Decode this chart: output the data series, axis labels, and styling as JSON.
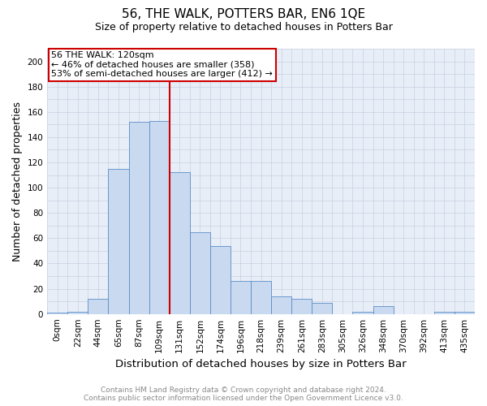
{
  "title": "56, THE WALK, POTTERS BAR, EN6 1QE",
  "subtitle": "Size of property relative to detached houses in Potters Bar",
  "xlabel": "Distribution of detached houses by size in Potters Bar",
  "ylabel": "Number of detached properties",
  "categories": [
    "0sqm",
    "22sqm",
    "44sqm",
    "65sqm",
    "87sqm",
    "109sqm",
    "131sqm",
    "152sqm",
    "174sqm",
    "196sqm",
    "218sqm",
    "239sqm",
    "261sqm",
    "283sqm",
    "305sqm",
    "326sqm",
    "348sqm",
    "370sqm",
    "392sqm",
    "413sqm",
    "435sqm"
  ],
  "bar_heights": [
    1,
    2,
    12,
    115,
    152,
    153,
    112,
    65,
    54,
    26,
    26,
    14,
    12,
    9,
    0,
    2,
    6,
    0,
    0,
    2,
    2
  ],
  "bar_color": "#c9d9ef",
  "bar_edge_color": "#5b8dc8",
  "annotation_text1": "56 THE WALK: 120sqm",
  "annotation_text2": "← 46% of detached houses are smaller (358)",
  "annotation_text3": "53% of semi-detached houses are larger (412) →",
  "annotation_box_color": "#ffffff",
  "annotation_border_color": "#cc0000",
  "line_color": "#cc0000",
  "ylim": [
    0,
    210
  ],
  "yticks": [
    0,
    20,
    40,
    60,
    80,
    100,
    120,
    140,
    160,
    180,
    200
  ],
  "footer_line1": "Contains HM Land Registry data © Crown copyright and database right 2024.",
  "footer_line2": "Contains public sector information licensed under the Open Government Licence v3.0.",
  "background_color": "#ffffff",
  "plot_bg_color": "#e8eef8",
  "grid_color": "#c8d0e0",
  "title_fontsize": 11,
  "subtitle_fontsize": 9,
  "axis_label_fontsize": 9,
  "tick_fontsize": 7.5,
  "footer_fontsize": 6.5,
  "annotation_fontsize": 8
}
